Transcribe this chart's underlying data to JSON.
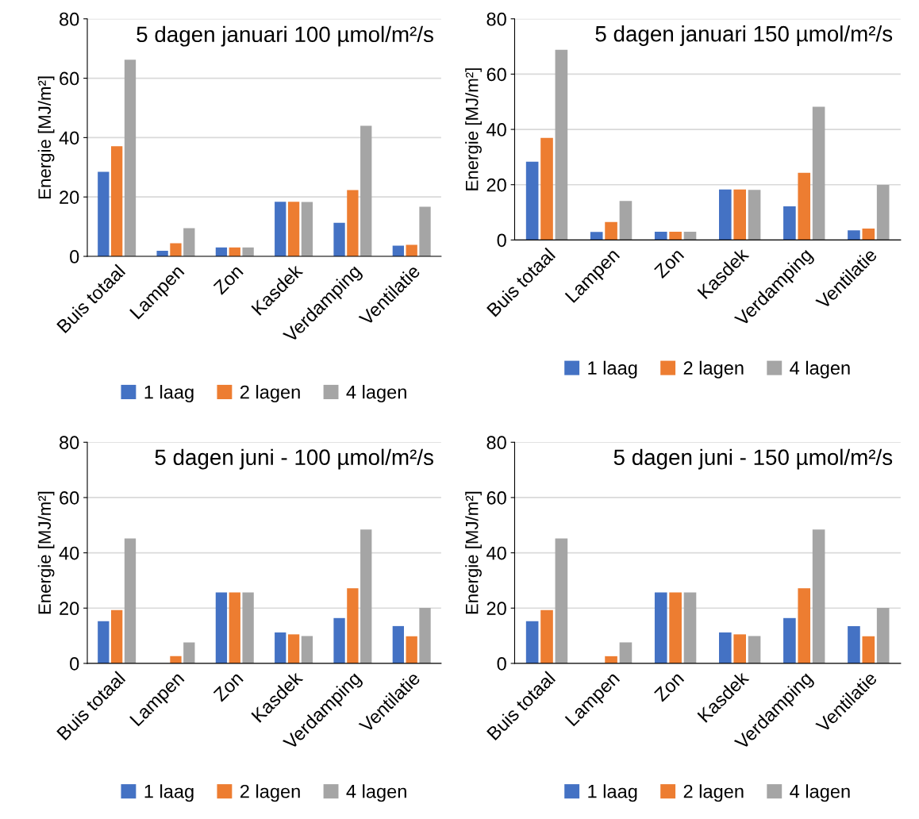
{
  "chart_data": [
    {
      "type": "bar",
      "title": "5 dagen januari 100 µmol/m²/s",
      "ylabel": "Energie [MJ/m²]",
      "categories": [
        "Buis totaal",
        "Lampen",
        "Zon",
        "Kasdek",
        "Verdamping",
        "Ventilatie"
      ],
      "ylim": [
        0,
        80
      ],
      "yticks": [
        0,
        20,
        40,
        60,
        80
      ],
      "grid": "y",
      "legend": "bottom",
      "series": [
        {
          "name": "1 laag",
          "color": "#4472c4",
          "values": [
            28.5,
            1.9,
            3.0,
            18.4,
            11.3,
            3.6
          ]
        },
        {
          "name": "2 lagen",
          "color": "#ed7d31",
          "values": [
            37.1,
            4.4,
            3.0,
            18.4,
            22.3,
            3.9
          ]
        },
        {
          "name": "4 lagen",
          "color": "#a5a5a5",
          "values": [
            66.2,
            9.5,
            3.0,
            18.3,
            44.0,
            16.7
          ]
        }
      ]
    },
    {
      "type": "bar",
      "title": "5 dagen januari 150 µmol/m²/s",
      "ylabel": "Energie [MJ/m²]",
      "categories": [
        "Buis totaal",
        "Lampen",
        "Zon",
        "Kasdek",
        "Verdamping",
        "Ventilatie"
      ],
      "ylim": [
        0,
        80
      ],
      "yticks": [
        0,
        20,
        40,
        60,
        80
      ],
      "grid": "y",
      "legend": "bottom",
      "series": [
        {
          "name": "1 laag",
          "color": "#4472c4",
          "values": [
            28.3,
            2.9,
            3.0,
            18.3,
            12.2,
            3.5
          ]
        },
        {
          "name": "2 lagen",
          "color": "#ed7d31",
          "values": [
            36.9,
            6.5,
            3.0,
            18.3,
            24.3,
            4.1
          ]
        },
        {
          "name": "4 lagen",
          "color": "#a5a5a5",
          "values": [
            68.8,
            14.1,
            3.0,
            18.1,
            48.2,
            19.9
          ]
        }
      ]
    },
    {
      "type": "bar",
      "title": "5 dagen juni - 100 µmol/m²/s",
      "ylabel": "Energie [MJ/m²]",
      "categories": [
        "Buis totaal",
        "Lampen",
        "Zon",
        "Kasdek",
        "Verdamping",
        "Ventilatie"
      ],
      "ylim": [
        0,
        80
      ],
      "yticks": [
        0,
        20,
        40,
        60,
        80
      ],
      "grid": "y",
      "legend": "bottom",
      "series": [
        {
          "name": "1 laag",
          "color": "#4472c4",
          "values": [
            15.3,
            0,
            25.7,
            11.2,
            16.4,
            13.5
          ]
        },
        {
          "name": "2 lagen",
          "color": "#ed7d31",
          "values": [
            19.3,
            2.6,
            25.7,
            10.5,
            27.2,
            9.8
          ]
        },
        {
          "name": "4 lagen",
          "color": "#a5a5a5",
          "values": [
            45.2,
            7.6,
            25.7,
            9.9,
            48.4,
            20.1
          ]
        }
      ]
    },
    {
      "type": "bar",
      "title": "5 dagen juni - 150 µmol/m²/s",
      "ylabel": "Energie [MJ/m²]",
      "categories": [
        "Buis totaal",
        "Lampen",
        "Zon",
        "Kasdek",
        "Verdamping",
        "Ventilatie"
      ],
      "ylim": [
        0,
        80
      ],
      "yticks": [
        0,
        20,
        40,
        60,
        80
      ],
      "grid": "y",
      "legend": "bottom",
      "series": [
        {
          "name": "1 laag",
          "color": "#4472c4",
          "values": [
            15.3,
            0,
            25.7,
            11.2,
            16.4,
            13.5
          ]
        },
        {
          "name": "2 lagen",
          "color": "#ed7d31",
          "values": [
            19.3,
            2.6,
            25.7,
            10.5,
            27.2,
            9.8
          ]
        },
        {
          "name": "4 lagen",
          "color": "#a5a5a5",
          "values": [
            45.2,
            7.6,
            25.7,
            9.9,
            48.4,
            20.1
          ]
        }
      ]
    }
  ]
}
